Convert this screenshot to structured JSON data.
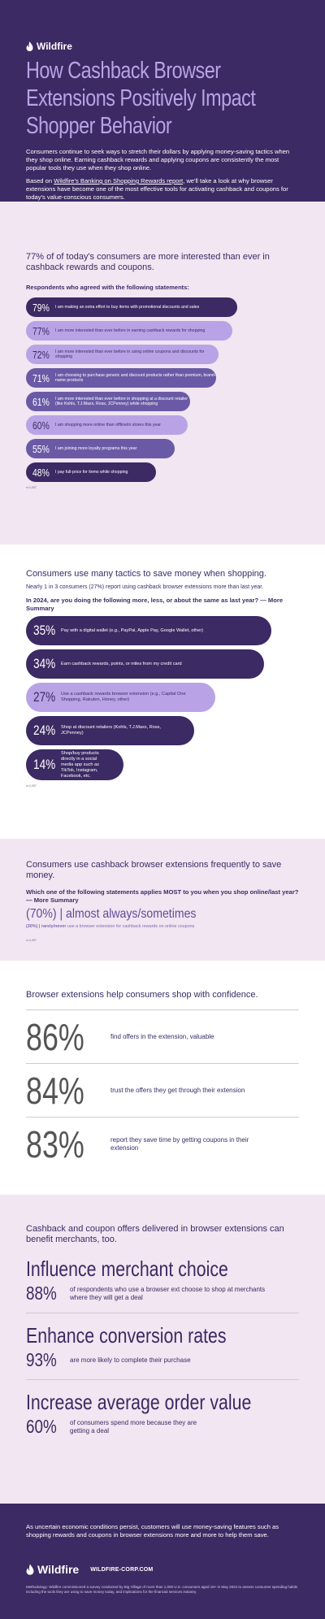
{
  "brand": {
    "name": "Wildfire",
    "url": "WILDFIRE-CORP.COM"
  },
  "colors": {
    "dark_purple": "#3b2a63",
    "mid_purple": "#6a5aa6",
    "light_purple": "#b9a3e6",
    "pink_bg": "#f1e6f1"
  },
  "header": {
    "title": "How Cashback Browser Extensions Positively Impact Shopper Behavior",
    "intro": "Consumers continue to seek ways to stretch their dollars by applying money-saving tactics when they shop online.  Earning cashback rewards and applying coupons are consistently the most popular tools they use when they shop online.",
    "report_prefix": "Based on ",
    "report_link": "Wildfire's Banking on Shopping Rewards report",
    "report_suffix": ", we'll take a look at why browser extensions have become one of the most effective tools for activating cashback and coupons for today's value-conscious consumers."
  },
  "section_interest": {
    "heading": "77% of of today's consumers are more interested than ever in cashback rewards and coupons.",
    "subheading": "Respondents who agreed with the following statements:",
    "source": "n=1,007",
    "stats": [
      {
        "pct": "79%",
        "text": "I am making an extra effort to buy items with promotional discounts and sales",
        "value": 79
      },
      {
        "pct": "77%",
        "text": "I am more interested than ever before in earning cashback rewards for shopping",
        "value": 77
      },
      {
        "pct": "72%",
        "text": "I am more interested than ever before in using online coupons and discounts for shopping",
        "value": 72
      },
      {
        "pct": "71%",
        "text": "I am choosing to purchase generic and discount products rather than premium, brand-name products",
        "value": 71
      },
      {
        "pct": "61%",
        "text": "I am more interested than ever before in shopping at a discount retailer (like Kohls, T.J.Maxx, Ross, JCPenney) while shopping",
        "value": 61
      },
      {
        "pct": "60%",
        "text": "I am shopping more online than offline/in stores this year",
        "value": 60
      },
      {
        "pct": "55%",
        "text": "I am joining more loyalty programs this year",
        "value": 55
      },
      {
        "pct": "48%",
        "text": "I pay full-price for items while shopping",
        "value": 48
      }
    ]
  },
  "section_tactics": {
    "heading": "Consumers use many tactics to save money when shopping.",
    "note": "Nearly 1 in 3 consumers (27%) report using cashback browser extensions more than last year.",
    "question": "In 2024, are you doing the following more, less, or about the same as last year? — More Summary",
    "source": "n=1,007",
    "stats": [
      {
        "pct": "35%",
        "text": "Pay with a digital wallet (e.g., PayPal, Apple Pay, Google Wallet, other)",
        "value": 35
      },
      {
        "pct": "34%",
        "text": "Earn cashback rewards, points, or miles from my credit card",
        "value": 34
      },
      {
        "pct": "27%",
        "text": "Use a cashback rewards browser extension (e.g., Capital One Shopping, Rakuten, Honey, other)",
        "value": 27
      },
      {
        "pct": "24%",
        "text": "Shop at discount retailers (Kohls, T.J.Maxx, Ross, JCPenney)",
        "value": 24
      },
      {
        "pct": "14%",
        "text": "Shop/buy products directly in a social media app such as TikTok, Instagram, Facebook, etc.",
        "value": 14
      }
    ]
  },
  "section_frequency": {
    "heading": "Consumers use cashback browser extensions frequently to save money.",
    "question": "Which one of the following statements applies MOST to you when you shop online/last year? — More Summary",
    "big": "(70%) | almost always/sometimes",
    "small_bold": "(30%) | rarely/never",
    "small_rest": " use a browser extension for cashback rewards on online coupons",
    "source": "n=1,007"
  },
  "section_confidence": {
    "heading": "Browser extensions help consumers shop with confidence.",
    "stats": [
      {
        "pct": "86%",
        "text": "find offers in the extension, valuable"
      },
      {
        "pct": "84%",
        "text": "trust the offers they get through their extension"
      },
      {
        "pct": "83%",
        "text": "report they save time by getting coupons in their extension"
      }
    ]
  },
  "section_merchants": {
    "heading": "Cashback and coupon offers delivered in browser extensions can benefit merchants, too.",
    "blocks": [
      {
        "title": "Influence merchant choice",
        "pct": "88%",
        "text": "of respondents who use a browser ext choose to shop at merchants where they will get a deal"
      },
      {
        "title": "Enhance conversion rates",
        "pct": "93%",
        "text": "are more likely to complete their purchase"
      },
      {
        "title": "Increase average order value",
        "pct": "60%",
        "text": "of consumers spend more because they are getting a deal"
      }
    ]
  },
  "footer": {
    "closing": "As uncertain economic conditions persist, customers will use money-saving features such as shopping rewards and coupons in browser extensions more and more to help them save.",
    "methodology": "Methodology: Wildfire commissioned a survey conducted by Big Village of more than 1,000 U.S. consumers aged 18+ in May 2024 to assess consumer spending habits including the tools they are using to save money today, and implications for the financial services industry."
  }
}
